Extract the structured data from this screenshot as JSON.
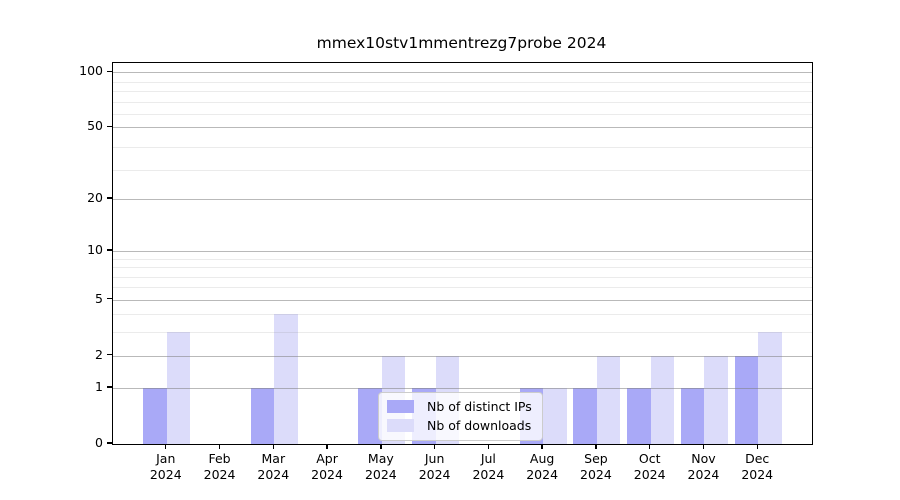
{
  "figure": {
    "title": "mmex10stv1mmentrezg7probe 2024"
  },
  "chart_data": {
    "type": "bar",
    "title": "mmex10stv1mmentrezg7probe 2024",
    "categories": [
      "Jan",
      "Feb",
      "Mar",
      "Apr",
      "May",
      "Jun",
      "Jul",
      "Aug",
      "Sep",
      "Oct",
      "Nov",
      "Dec"
    ],
    "category_year": "2024",
    "series": [
      {
        "name": "Nb of distinct IPs",
        "slug": "distinct-ips",
        "color": "#a9a9f7",
        "values": [
          1,
          0,
          1,
          0,
          1,
          1,
          0,
          1,
          1,
          1,
          1,
          2
        ]
      },
      {
        "name": "Nb of downloads",
        "slug": "downloads",
        "color": "#dcdcfa",
        "values": [
          3,
          0,
          4,
          0,
          2,
          2,
          0,
          1,
          2,
          2,
          2,
          3
        ]
      }
    ],
    "yscale": "log1p",
    "ylim": [
      0,
      112
    ],
    "y_major_ticks": [
      0,
      1,
      2,
      5,
      10,
      20,
      50,
      100
    ],
    "y_minor_gridlines": [
      3,
      4,
      6,
      7,
      8,
      9,
      29,
      39,
      59,
      69,
      79,
      89
    ],
    "grid": true,
    "legend_position": "lower center",
    "colors": {
      "grid": "#808080",
      "spine": "#000000",
      "background": "#ffffff",
      "text": "#000000"
    }
  }
}
